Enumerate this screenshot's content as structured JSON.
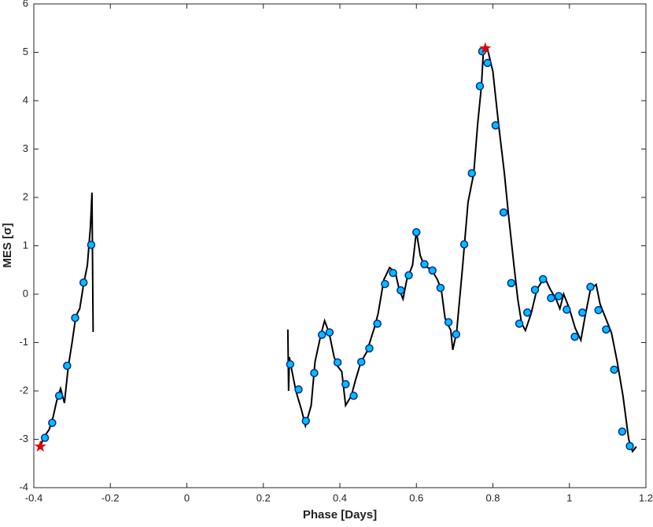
{
  "chart_data": {
    "type": "line",
    "xlabel": "Phase [Days]",
    "ylabel": "MES [σ]",
    "xlim": [
      -0.4,
      1.2
    ],
    "xticks": [
      -0.4,
      -0.2,
      0,
      0.2,
      0.4,
      0.6,
      0.8,
      1,
      1.2
    ],
    "ylim": [
      -4,
      6
    ],
    "yticks": [
      -4,
      -3,
      -2,
      -1,
      0,
      1,
      2,
      3,
      4,
      5,
      6
    ],
    "line": {
      "color": "#000000",
      "x": [
        -0.383,
        -0.375,
        -0.36,
        -0.35,
        -0.34,
        -0.33,
        -0.32,
        -0.31,
        -0.3,
        -0.29,
        -0.28,
        -0.27,
        -0.26,
        -0.252,
        -0.248,
        -0.245,
        null,
        0.264,
        0.266,
        0.268,
        0.275,
        0.285,
        0.3,
        0.31,
        0.325,
        0.335,
        0.35,
        0.36,
        0.372,
        0.385,
        0.395,
        0.405,
        0.415,
        0.43,
        0.44,
        0.455,
        0.47,
        0.49,
        0.5,
        0.515,
        0.53,
        0.545,
        0.555,
        0.565,
        0.575,
        0.59,
        0.6,
        0.61,
        0.62,
        0.64,
        0.655,
        0.665,
        0.675,
        0.69,
        0.695,
        0.705,
        0.72,
        0.735,
        0.75,
        0.76,
        0.77,
        0.775,
        0.785,
        0.8,
        0.815,
        0.83,
        0.84,
        0.855,
        0.865,
        0.875,
        0.885,
        0.9,
        0.915,
        0.935,
        0.95,
        0.965,
        0.975,
        0.985,
        1.0,
        1.015,
        1.03,
        1.04,
        1.055,
        1.07,
        1.08,
        1.095,
        1.11,
        1.125,
        1.14,
        1.155,
        1.165,
        1.175
      ],
      "y": [
        -3.15,
        -2.97,
        -2.8,
        -2.55,
        -2.2,
        -1.95,
        -2.25,
        -1.5,
        -1.0,
        -0.45,
        -0.3,
        0.2,
        0.6,
        1.4,
        2.1,
        -0.78,
        null,
        -0.73,
        -2.0,
        -1.3,
        -1.6,
        -2.0,
        -2.4,
        -2.72,
        -2.3,
        -1.4,
        -0.85,
        -0.55,
        -0.8,
        -1.3,
        -1.5,
        -1.6,
        -2.3,
        -2.1,
        -1.8,
        -1.4,
        -1.2,
        -0.7,
        -0.4,
        0.3,
        0.55,
        0.45,
        0.1,
        -0.1,
        0.3,
        0.6,
        1.3,
        0.8,
        0.6,
        0.5,
        0.3,
        0.1,
        -0.5,
        -0.75,
        -1.15,
        -0.8,
        0.5,
        1.9,
        2.5,
        3.5,
        4.3,
        5.0,
        5.1,
        4.6,
        3.5,
        2.5,
        1.7,
        0.6,
        -0.1,
        -0.6,
        -0.75,
        -0.4,
        0.1,
        0.35,
        0.1,
        -0.1,
        -0.3,
        0.0,
        -0.3,
        -0.7,
        -0.95,
        -0.5,
        0.1,
        0.2,
        -0.2,
        -0.5,
        -0.8,
        -1.4,
        -2.1,
        -3.0,
        -3.25,
        -3.15
      ]
    },
    "markers": {
      "color": "#00bfff",
      "x": [
        -0.371,
        -0.352,
        -0.334,
        -0.313,
        -0.292,
        -0.27,
        -0.25,
        0.27,
        0.292,
        0.311,
        0.333,
        0.353,
        0.373,
        0.394,
        0.415,
        0.436,
        0.456,
        0.477,
        0.498,
        0.518,
        0.539,
        0.559,
        0.58,
        0.6,
        0.621,
        0.642,
        0.663,
        0.684,
        0.704,
        0.725,
        0.745,
        0.766,
        0.772,
        0.786,
        0.807,
        0.828,
        0.848,
        0.869,
        0.89,
        0.91,
        0.931,
        0.952,
        0.972,
        0.993,
        1.014,
        1.034,
        1.055,
        1.076,
        1.096,
        1.117,
        1.138,
        1.158
      ],
      "y": [
        -2.97,
        -2.66,
        -2.1,
        -1.48,
        -0.49,
        0.24,
        1.02,
        -1.45,
        -1.97,
        -2.62,
        -1.63,
        -0.84,
        -0.79,
        -1.41,
        -1.86,
        -2.1,
        -1.4,
        -1.12,
        -0.61,
        0.21,
        0.44,
        0.08,
        0.39,
        1.28,
        0.62,
        0.49,
        0.13,
        -0.58,
        -0.83,
        1.03,
        2.5,
        4.3,
        5.02,
        4.78,
        3.49,
        1.69,
        0.23,
        -0.61,
        -0.38,
        0.09,
        0.31,
        -0.08,
        -0.04,
        -0.32,
        -0.88,
        -0.38,
        0.15,
        -0.33,
        -0.73,
        -1.56,
        -2.84,
        -3.14
      ]
    },
    "stars": {
      "color": "#e00000",
      "x": [
        -0.383,
        0.78
      ],
      "y": [
        -3.15,
        5.08
      ]
    }
  }
}
